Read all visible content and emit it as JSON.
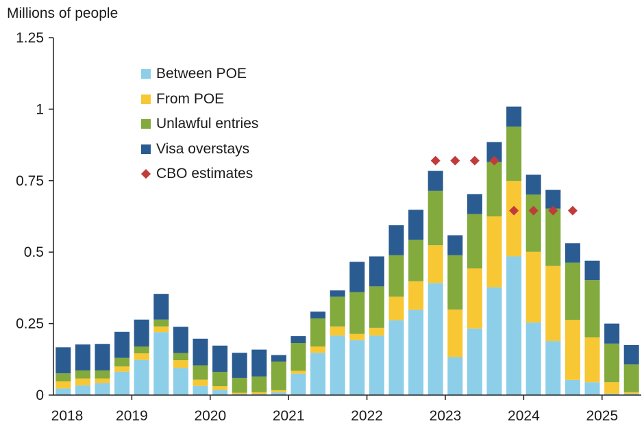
{
  "chart_data": {
    "type": "bar",
    "stacked": true,
    "ylabel": "Millions of people",
    "ylim": [
      0,
      1.25
    ],
    "yticks": [
      0,
      0.25,
      0.5,
      0.75,
      1,
      1.25
    ],
    "ytick_labels": [
      "0",
      "0.25",
      "0.5",
      "0.75",
      "1",
      "1.25"
    ],
    "xtick_labels": [
      "2018",
      "2019",
      "2020",
      "2021",
      "2022",
      "2023",
      "2024",
      "2025"
    ],
    "categories": [
      "2018Q1",
      "2018Q2",
      "2018Q3",
      "2018Q4",
      "2019Q1",
      "2019Q2",
      "2019Q3",
      "2019Q4",
      "2020Q1",
      "2020Q2",
      "2020Q3",
      "2020Q4",
      "2021Q1",
      "2021Q2",
      "2021Q3",
      "2021Q4",
      "2022Q1",
      "2022Q2",
      "2022Q3",
      "2022Q4",
      "2023Q1",
      "2023Q2",
      "2023Q3",
      "2023Q4",
      "2024Q1",
      "2024Q2",
      "2024Q3",
      "2024Q4",
      "2025Q1",
      "2025Q2"
    ],
    "series": [
      {
        "name": "Between POE",
        "color": "#8dcfe8",
        "values": [
          0.023,
          0.034,
          0.042,
          0.082,
          0.123,
          0.22,
          0.095,
          0.032,
          0.018,
          0.004,
          0.004,
          0.01,
          0.075,
          0.148,
          0.208,
          0.192,
          0.208,
          0.262,
          0.298,
          0.392,
          0.133,
          0.233,
          0.377,
          0.485,
          0.254,
          0.189,
          0.053,
          0.045,
          0.005,
          0.005
        ]
      },
      {
        "name": "From POE",
        "color": "#f8c734",
        "values": [
          0.025,
          0.024,
          0.016,
          0.018,
          0.023,
          0.02,
          0.027,
          0.022,
          0.013,
          0.004,
          0.006,
          0.007,
          0.01,
          0.022,
          0.032,
          0.022,
          0.027,
          0.082,
          0.1,
          0.132,
          0.166,
          0.21,
          0.248,
          0.264,
          0.247,
          0.263,
          0.21,
          0.157,
          0.04,
          0.005
        ]
      },
      {
        "name": "Unlawful entries",
        "color": "#82aa3c",
        "values": [
          0.028,
          0.028,
          0.028,
          0.03,
          0.024,
          0.024,
          0.025,
          0.05,
          0.05,
          0.052,
          0.055,
          0.1,
          0.097,
          0.098,
          0.104,
          0.146,
          0.145,
          0.145,
          0.145,
          0.19,
          0.19,
          0.19,
          0.19,
          0.19,
          0.2,
          0.2,
          0.2,
          0.2,
          0.135,
          0.097
        ]
      },
      {
        "name": "Visa overstays",
        "color": "#2b5c91",
        "values": [
          0.091,
          0.091,
          0.093,
          0.091,
          0.094,
          0.09,
          0.092,
          0.093,
          0.092,
          0.088,
          0.094,
          0.023,
          0.024,
          0.024,
          0.022,
          0.106,
          0.105,
          0.105,
          0.105,
          0.07,
          0.07,
          0.07,
          0.07,
          0.07,
          0.07,
          0.066,
          0.068,
          0.068,
          0.07,
          0.068
        ]
      }
    ],
    "markers": {
      "name": "CBO estimates",
      "color": "#c23b3b",
      "marker": "diamond",
      "points": [
        {
          "category": "2022Q4",
          "value": 0.82
        },
        {
          "category": "2023Q1",
          "value": 0.82
        },
        {
          "category": "2023Q2",
          "value": 0.82
        },
        {
          "category": "2023Q3",
          "value": 0.82
        },
        {
          "category": "2023Q4",
          "value": 0.645
        },
        {
          "category": "2024Q1",
          "value": 0.645
        },
        {
          "category": "2024Q2",
          "value": 0.645
        },
        {
          "category": "2024Q3",
          "value": 0.645
        }
      ]
    }
  }
}
